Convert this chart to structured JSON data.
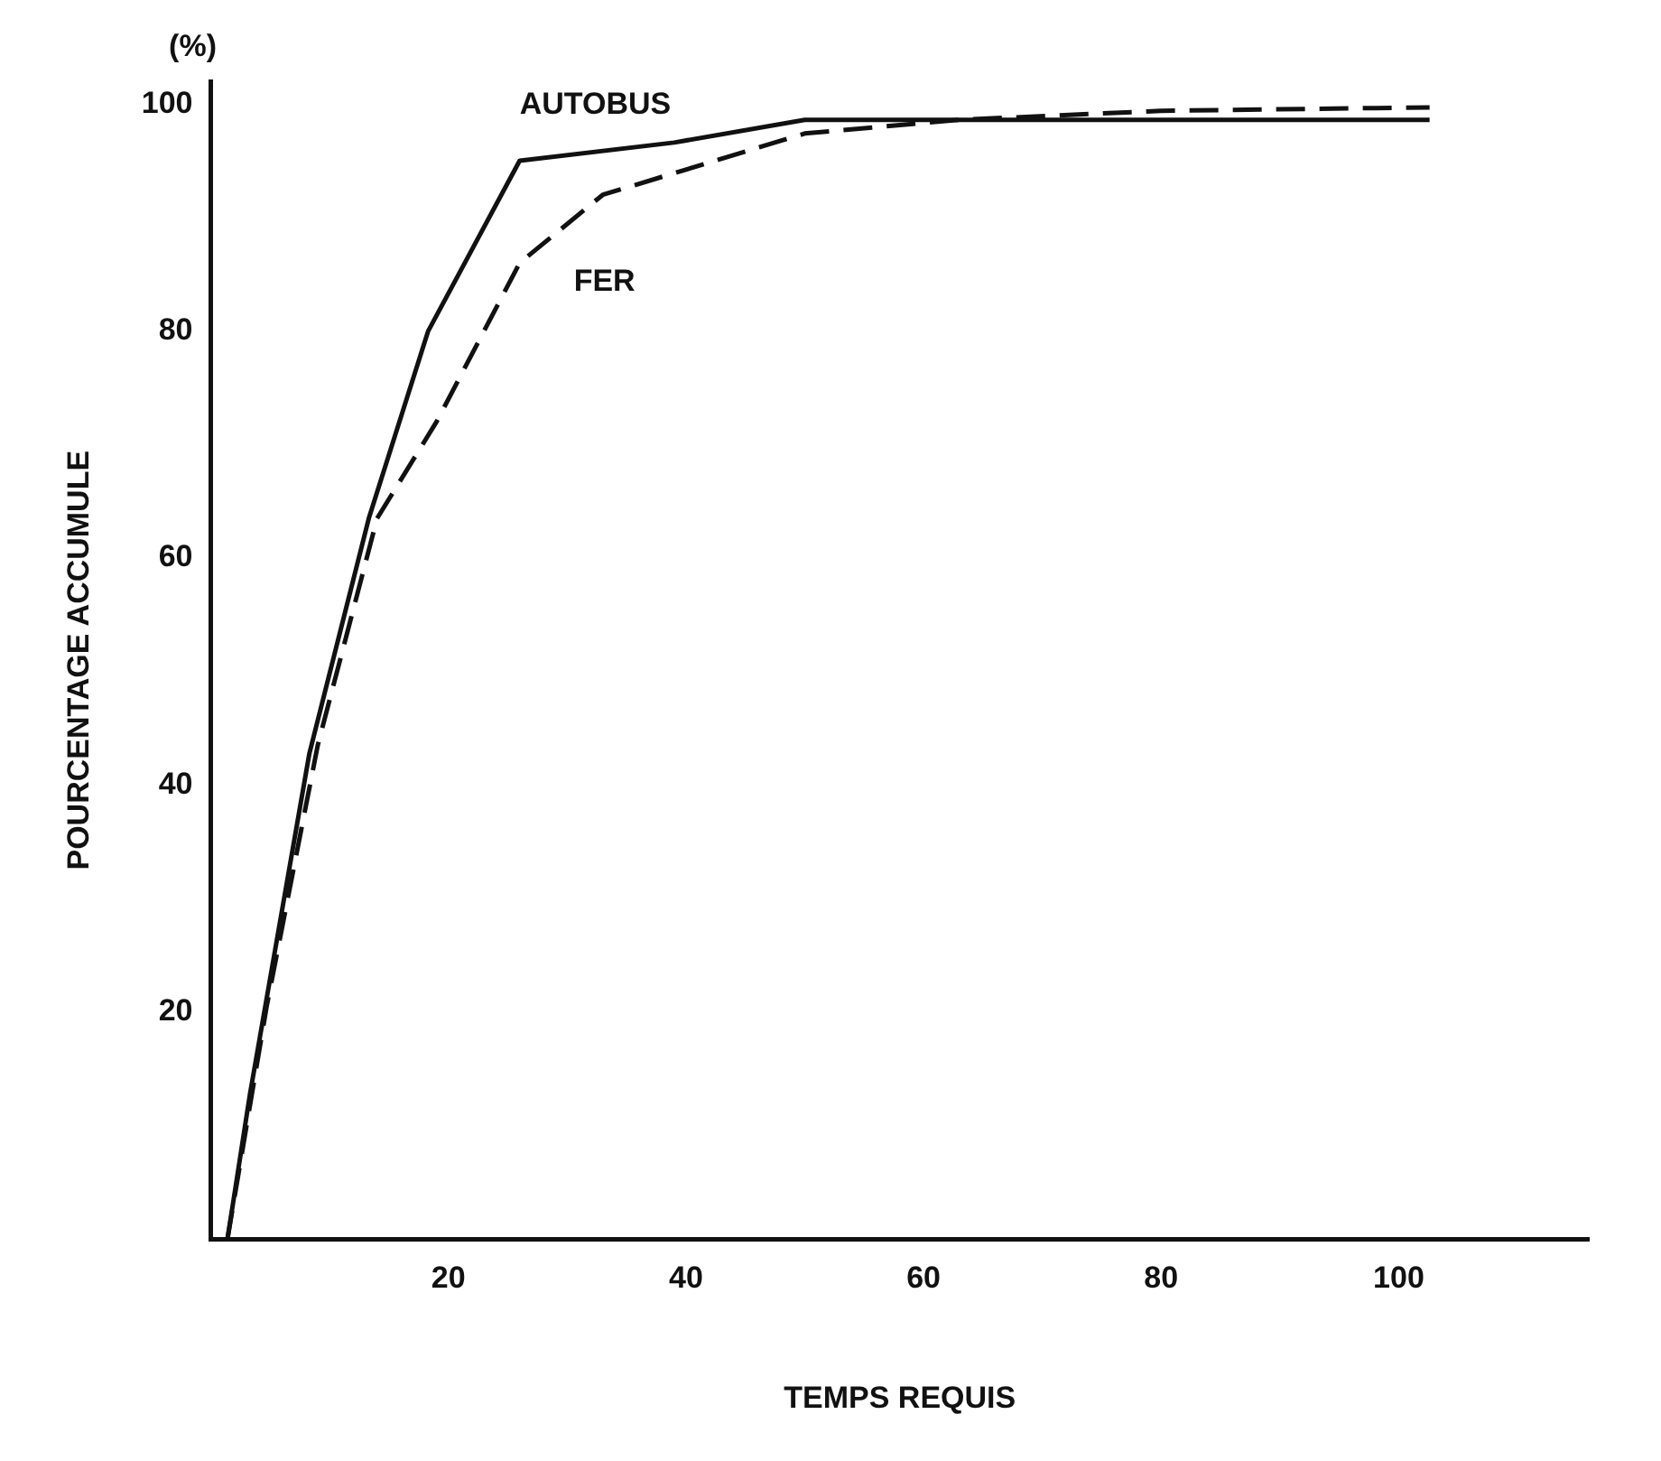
{
  "chart_data": {
    "type": "line",
    "xlabel": "TEMPS REQUIS",
    "ylabel": "POURCENTAGE ACCUMULE",
    "annotations": [
      "(%)"
    ],
    "xlim": [
      0,
      116
    ],
    "ylim": [
      0,
      102
    ],
    "xticks": [
      20,
      40,
      60,
      80,
      100
    ],
    "yticks": [
      20,
      40,
      60,
      80,
      100
    ],
    "grid": false,
    "legend": false,
    "marker": "none",
    "series": [
      {
        "name": "AUTOBUS",
        "color": "#111111",
        "line_style": "solid",
        "x": [
          1.4,
          3.3,
          8.3,
          13.3,
          18.3,
          26,
          39,
          50,
          60,
          80,
          102.6
        ],
        "values": [
          0,
          12.8,
          42.8,
          63.5,
          80,
          95,
          96.6,
          98.6,
          98.6,
          98.6,
          98.6
        ]
      },
      {
        "name": "FER",
        "color": "#111111",
        "line_style": "dashed",
        "x": [
          1.4,
          4.7,
          9,
          14,
          19,
          26,
          33,
          50,
          63,
          80,
          102.6
        ],
        "values": [
          0,
          20.5,
          43.5,
          63.5,
          72,
          86,
          92,
          97.4,
          98.6,
          99.4,
          99.7
        ]
      }
    ]
  }
}
